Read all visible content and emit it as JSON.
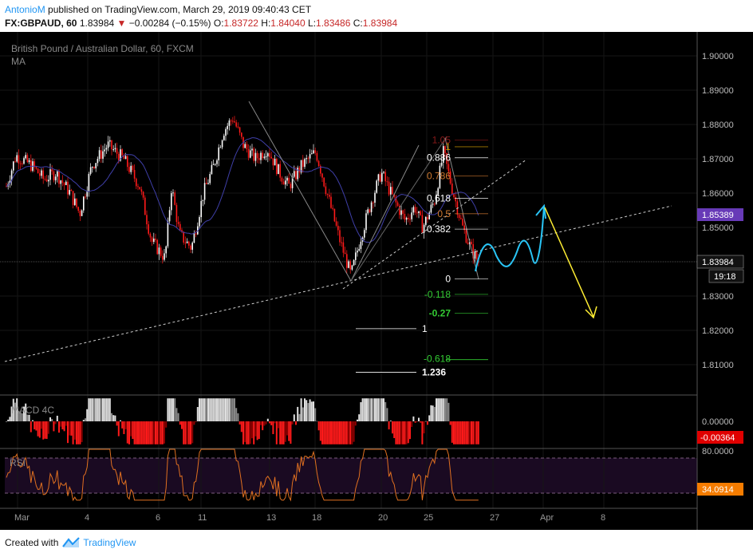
{
  "header": {
    "author": "AntonioM",
    "published": "published on TradingView.com, March 29, 2019 09:40:43 CET",
    "symbol": "FX:GBPAUD, 60",
    "last": "1.83984",
    "change": "−0.00284 (−0.15%)",
    "o_label": "O:",
    "o": "1.83722",
    "h_label": "H:",
    "h": "1.84040",
    "l_label": "L:",
    "l": "1.83486",
    "c_label": "C:",
    "c": "1.83984"
  },
  "legend": {
    "title": "British Pound / Australian Dollar, 60, FXCM",
    "ma": "MA",
    "macd": "MACD 4C",
    "rsi": "RSI"
  },
  "footer": {
    "created": "Created with",
    "brand": "TradingView"
  },
  "colors": {
    "background": "#000000",
    "candle_up": "#ffffff",
    "candle_down": "#ff1a1a",
    "ma": "#3f3fa8",
    "projection": "#29c5f6",
    "arrow": "#ffee33",
    "fib_pos": "#ffffff",
    "fib_neg": "#33cc33",
    "fib_top": "#8b1a1a",
    "rsi_line": "#e07020",
    "rsi_tag": "#f57c00",
    "macd_tag": "#e00000",
    "ma_tag": "#673ab7"
  },
  "chart_data": [
    {
      "type": "candlestick",
      "title": "British Pound / Australian Dollar, 60, FXCM",
      "ylim": [
        1.801,
        1.902
      ],
      "y_ticks": [
        "1.90000",
        "1.89000",
        "1.88000",
        "1.87000",
        "1.86000",
        "1.85000",
        "1.84000",
        "1.83000",
        "1.82000",
        "1.81000"
      ],
      "x_ticks": [
        "Mar",
        "4",
        "6",
        "11",
        "13",
        "18",
        "20",
        "25",
        "27",
        "Apr",
        "8"
      ],
      "last_price": "1.83984",
      "countdown": "19:18",
      "ma_value": "1.85389",
      "fib_right": [
        {
          "level": "1.05",
          "price": 1.8755
        },
        {
          "level": "1",
          "price": 1.8735
        },
        {
          "level": "0.886",
          "price": 1.8703
        },
        {
          "level": "0.786",
          "price": 1.865
        },
        {
          "level": "0.618",
          "price": 1.8585
        },
        {
          "level": "0.5",
          "price": 1.854
        },
        {
          "level": "0.382",
          "price": 1.8495
        },
        {
          "level": "0",
          "price": 1.835
        },
        {
          "level": "-0.118",
          "price": 1.8305
        },
        {
          "level": "-0.27",
          "price": 1.825
        }
      ],
      "fib_left": [
        {
          "level": "1",
          "price": 1.8205
        },
        {
          "level": "-0.618",
          "price": 1.8117
        },
        {
          "level": "1.236",
          "price": 1.8078
        }
      ]
    },
    {
      "type": "bar",
      "title": "MACD 4C",
      "ylim": [
        -0.0075,
        0.0075
      ],
      "y_ticks": [
        "0.00000"
      ],
      "last_value": "-0.00364"
    },
    {
      "type": "line",
      "title": "RSI",
      "ylim": [
        20,
        82
      ],
      "bands": [
        70,
        30
      ],
      "y_ticks": [
        "80.0000"
      ],
      "last_value": "34.0914"
    }
  ]
}
